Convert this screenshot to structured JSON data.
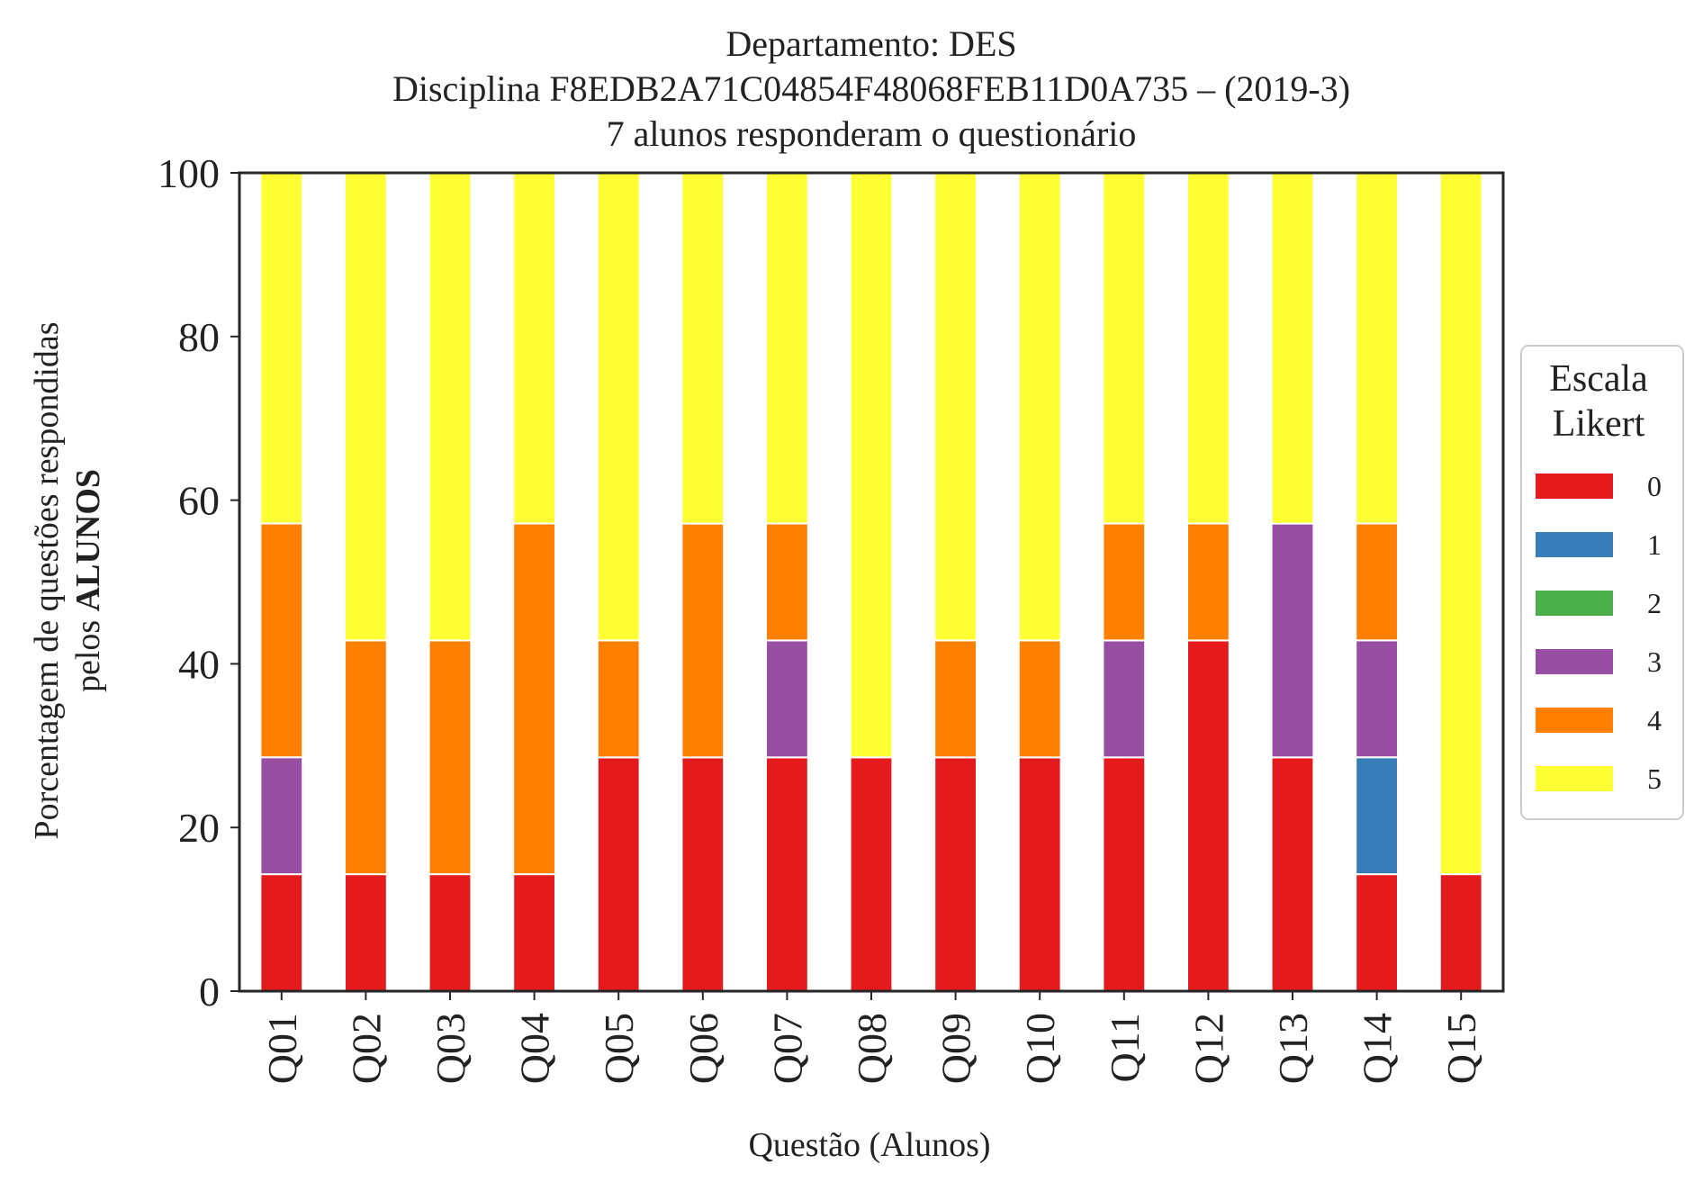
{
  "chart_data": {
    "type": "bar",
    "stacked": true,
    "title_lines": [
      "Departamento: DES",
      "Disciplina F8EDB2A71C04854F48068FEB11D0A735 – (2019-3)",
      "7 alunos responderam o questionário"
    ],
    "xlabel": "Questão (Alunos)",
    "ylabel_line1": "Porcentagem de questões respondidas",
    "ylabel_line2_prefix": "pelos ",
    "ylabel_line2_bold": "ALUNOS",
    "ylim": [
      0,
      100
    ],
    "yticks": [
      "0",
      "20",
      "40",
      "60",
      "80",
      "100"
    ],
    "grid": false,
    "legend_position": "right",
    "legend_title_lines": [
      "Escala",
      "Likert"
    ],
    "categories": [
      "Q01",
      "Q02",
      "Q03",
      "Q04",
      "Q05",
      "Q06",
      "Q07",
      "Q08",
      "Q09",
      "Q10",
      "Q11",
      "Q12",
      "Q13",
      "Q14",
      "Q15"
    ],
    "series": [
      {
        "name": "0",
        "color": "#e41a1c",
        "values": [
          14.29,
          14.29,
          14.29,
          14.29,
          28.57,
          28.57,
          28.57,
          28.57,
          28.57,
          28.57,
          28.57,
          42.86,
          28.57,
          14.29,
          14.29
        ]
      },
      {
        "name": "1",
        "color": "#377eb8",
        "values": [
          0,
          0,
          0,
          0,
          0,
          0,
          0,
          0,
          0,
          0,
          0,
          0,
          0,
          14.29,
          0
        ]
      },
      {
        "name": "2",
        "color": "#4daf4a",
        "values": [
          0,
          0,
          0,
          0,
          0,
          0,
          0,
          0,
          0,
          0,
          0,
          0,
          0,
          0,
          0
        ]
      },
      {
        "name": "3",
        "color": "#984ea3",
        "values": [
          14.29,
          0,
          0,
          0,
          0,
          0,
          14.29,
          0,
          0,
          0,
          14.29,
          0,
          28.57,
          14.29,
          0
        ]
      },
      {
        "name": "4",
        "color": "#ff7f00",
        "values": [
          28.57,
          28.57,
          28.57,
          42.86,
          14.29,
          28.57,
          14.29,
          0,
          14.29,
          14.29,
          14.29,
          14.29,
          0,
          14.29,
          0
        ]
      },
      {
        "name": "5",
        "color": "#ffff33",
        "values": [
          42.86,
          57.14,
          57.14,
          42.86,
          57.14,
          42.86,
          42.86,
          71.43,
          57.14,
          57.14,
          42.86,
          42.86,
          42.86,
          42.86,
          85.71
        ]
      }
    ]
  }
}
